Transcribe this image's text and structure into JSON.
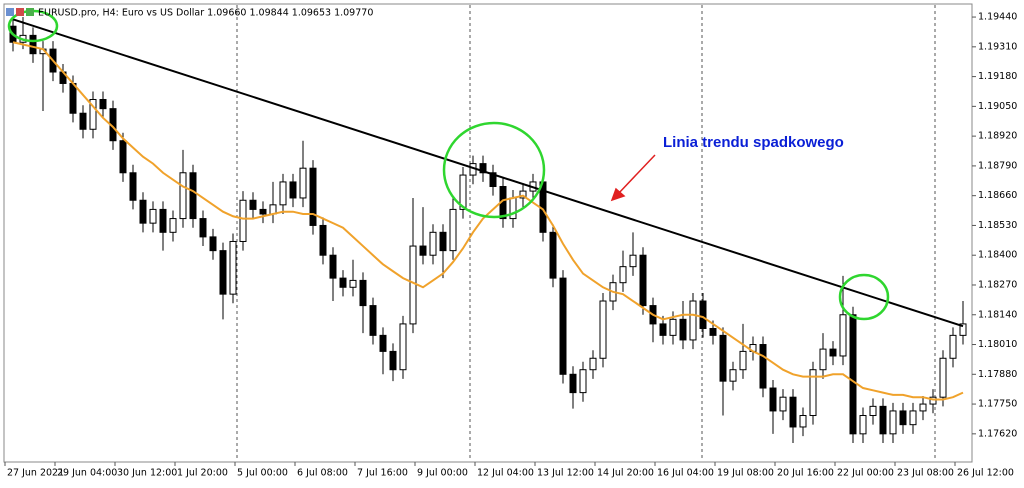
{
  "chart_data": {
    "type": "candlestick",
    "title": "EURUSD.pro, H4:  Euro vs US Dollar  1.09660 1.09844 1.09653 1.09770",
    "annotation": "Linia trendu spadkowego",
    "categories": [
      "27 Jun 2021",
      null,
      null,
      null,
      null,
      "29 Jun 04:00",
      null,
      null,
      null,
      null,
      null,
      "30 Jun 12:00",
      null,
      null,
      null,
      null,
      null,
      "1 Jul 20:00",
      null,
      null,
      null,
      null,
      null,
      "5 Jul 00:00",
      null,
      null,
      null,
      null,
      null,
      "6 Jul 08:00",
      null,
      null,
      null,
      null,
      null,
      "7 Jul 16:00",
      null,
      null,
      null,
      null,
      null,
      "9 Jul 00:00",
      null,
      null,
      null,
      null,
      null,
      "12 Jul 04:00",
      null,
      null,
      null,
      null,
      null,
      "13 Jul 12:00",
      null,
      null,
      null,
      null,
      null,
      "14 Jul 20:00",
      null,
      null,
      null,
      null,
      null,
      "16 Jul 04:00",
      null,
      null,
      null,
      null,
      null,
      "19 Jul 08:00",
      null,
      null,
      null,
      null,
      null,
      "20 Jul 16:00",
      null,
      null,
      null,
      null,
      null,
      "22 Jul 00:00",
      null,
      null,
      null,
      null,
      null,
      "23 Jul 08:00",
      null,
      null,
      null,
      null,
      null,
      "26 Jul 12:00"
    ],
    "open": [
      1.194,
      1.1933,
      1.1936,
      1.1928,
      1.193,
      1.192,
      1.1915,
      1.1902,
      1.1895,
      1.1908,
      1.1904,
      1.189,
      1.1876,
      1.1864,
      1.1854,
      1.186,
      1.185,
      1.1856,
      1.1876,
      1.1856,
      1.1848,
      1.1842,
      1.1823,
      1.1846,
      1.1864,
      1.186,
      1.1858,
      1.1862,
      1.1872,
      1.1865,
      1.1878,
      1.1853,
      1.184,
      1.183,
      1.1826,
      1.1829,
      1.1818,
      1.1805,
      1.1798,
      1.179,
      1.181,
      1.1844,
      1.184,
      1.185,
      1.1842,
      1.186,
      1.1875,
      1.188,
      1.1876,
      1.187,
      1.1856,
      1.1865,
      1.1868,
      1.1872,
      1.185,
      1.183,
      1.1788,
      1.178,
      1.179,
      1.1795,
      1.182,
      1.1828,
      1.1835,
      1.184,
      1.1818,
      1.181,
      1.1805,
      1.1812,
      1.1803,
      1.182,
      1.1808,
      1.1805,
      1.1785,
      1.179,
      1.1798,
      1.1801,
      1.1782,
      1.1772,
      1.1778,
      1.1765,
      1.177,
      1.179,
      1.1799,
      1.1796,
      1.1814,
      1.1762,
      1.177,
      1.1774,
      1.1762,
      1.1772,
      1.1766,
      1.1772,
      1.1775,
      1.1778,
      1.1795,
      1.1805
    ],
    "high": [
      1.19435,
      1.1944,
      1.19395,
      1.19335,
      1.19335,
      1.19235,
      1.19185,
      1.19055,
      1.19115,
      1.19115,
      1.19075,
      1.18935,
      1.18795,
      1.18675,
      1.18635,
      1.18635,
      1.18595,
      1.1886,
      1.18795,
      1.18595,
      1.18515,
      1.18455,
      1.18495,
      1.1868,
      1.18675,
      1.18635,
      1.1872,
      1.18755,
      1.18755,
      1.189,
      1.18815,
      1.18565,
      1.18435,
      1.18335,
      1.1838,
      1.18325,
      1.18215,
      1.18085,
      1.18015,
      1.18135,
      1.1865,
      1.1861,
      1.18535,
      1.18535,
      1.1866,
      1.18785,
      1.18835,
      1.18835,
      1.18795,
      1.18735,
      1.18685,
      1.18715,
      1.18755,
      1.18755,
      1.18535,
      1.18335,
      1.17915,
      1.17935,
      1.17985,
      1.18235,
      1.18315,
      1.1842,
      1.185,
      1.18435,
      1.18215,
      1.18135,
      1.18155,
      1.182,
      1.18235,
      1.18235,
      1.18115,
      1.18085,
      1.17935,
      1.181,
      1.18045,
      1.18045,
      1.17855,
      1.17815,
      1.17815,
      1.17735,
      1.17935,
      1.1806,
      1.18025,
      1.1831,
      1.18175,
      1.17735,
      1.17775,
      1.17775,
      1.17755,
      1.17755,
      1.17755,
      1.17785,
      1.17815,
      1.17985,
      1.18085,
      1.182
    ],
    "low": [
      1.1929,
      1.193,
      1.1924,
      1.1903,
      1.1916,
      1.1911,
      1.1898,
      1.1891,
      1.1891,
      1.19,
      1.1886,
      1.1872,
      1.186,
      1.185,
      1.185,
      1.1842,
      1.1846,
      1.1852,
      1.1852,
      1.1844,
      1.1838,
      1.1812,
      1.1819,
      1.1842,
      1.1856,
      1.1854,
      1.1854,
      1.1858,
      1.1861,
      1.1861,
      1.1849,
      1.1836,
      1.182,
      1.1822,
      1.1822,
      1.1806,
      1.1801,
      1.1788,
      1.1785,
      1.1786,
      1.1806,
      1.1836,
      1.1836,
      1.183,
      1.1838,
      1.1856,
      1.1871,
      1.1872,
      1.1866,
      1.1852,
      1.1852,
      1.1861,
      1.1864,
      1.1846,
      1.1826,
      1.1784,
      1.1773,
      1.1776,
      1.1786,
      1.1791,
      1.1816,
      1.1824,
      1.1831,
      1.1814,
      1.1802,
      1.1801,
      1.1801,
      1.1799,
      1.1799,
      1.1804,
      1.1801,
      1.177,
      1.1781,
      1.1786,
      1.1794,
      1.1778,
      1.1762,
      1.1768,
      1.1758,
      1.1761,
      1.1766,
      1.1786,
      1.1792,
      1.1792,
      1.1758,
      1.1758,
      1.1766,
      1.1758,
      1.1758,
      1.1762,
      1.1762,
      1.1768,
      1.1771,
      1.1774,
      1.1791,
      1.1801
    ],
    "close": [
      1.1933,
      1.1936,
      1.1928,
      1.193,
      1.192,
      1.1915,
      1.1902,
      1.1895,
      1.1908,
      1.1904,
      1.189,
      1.1876,
      1.1864,
      1.1854,
      1.186,
      1.185,
      1.1856,
      1.1876,
      1.1856,
      1.1848,
      1.1842,
      1.1823,
      1.1846,
      1.1864,
      1.186,
      1.1858,
      1.1862,
      1.1872,
      1.1865,
      1.1878,
      1.1853,
      1.184,
      1.183,
      1.1826,
      1.1829,
      1.1818,
      1.1805,
      1.1798,
      1.179,
      1.181,
      1.1844,
      1.184,
      1.185,
      1.1842,
      1.186,
      1.1875,
      1.188,
      1.1876,
      1.187,
      1.1856,
      1.1865,
      1.1868,
      1.1872,
      1.185,
      1.183,
      1.1788,
      1.178,
      1.179,
      1.1795,
      1.182,
      1.1828,
      1.1835,
      1.184,
      1.1818,
      1.181,
      1.1805,
      1.1812,
      1.1803,
      1.182,
      1.1808,
      1.1805,
      1.1785,
      1.179,
      1.1798,
      1.1801,
      1.1782,
      1.1772,
      1.1778,
      1.1765,
      1.177,
      1.179,
      1.1799,
      1.1796,
      1.1814,
      1.1762,
      1.177,
      1.1774,
      1.1762,
      1.1772,
      1.1766,
      1.1772,
      1.1775,
      1.1778,
      1.1795,
      1.1805,
      1.181
    ],
    "moving_average": {
      "color": "#f0a22b",
      "values": [
        1.1933,
        1.1932,
        1.1931,
        1.193,
        1.1925,
        1.192,
        1.1915,
        1.191,
        1.1905,
        1.19,
        1.1896,
        1.1891,
        1.1887,
        1.1883,
        1.188,
        1.1876,
        1.1873,
        1.187,
        1.1868,
        1.1865,
        1.1862,
        1.1859,
        1.1857,
        1.1856,
        1.1856,
        1.1857,
        1.1858,
        1.1859,
        1.1859,
        1.1858,
        1.1858,
        1.1856,
        1.1854,
        1.1852,
        1.1848,
        1.1844,
        1.184,
        1.1836,
        1.1833,
        1.183,
        1.1828,
        1.1826,
        1.1829,
        1.1832,
        1.1837,
        1.1843,
        1.185,
        1.1856,
        1.186,
        1.1864,
        1.1865,
        1.1866,
        1.1863,
        1.186,
        1.1853,
        1.1845,
        1.1838,
        1.1832,
        1.1829,
        1.1826,
        1.1824,
        1.1823,
        1.182,
        1.1817,
        1.1814,
        1.1812,
        1.1813,
        1.1814,
        1.1814,
        1.1813,
        1.181,
        1.1807,
        1.1804,
        1.1801,
        1.1798,
        1.1796,
        1.1793,
        1.179,
        1.1788,
        1.1787,
        1.1787,
        1.1787,
        1.1788,
        1.1788,
        1.1785,
        1.1782,
        1.1781,
        1.178,
        1.1779,
        1.1779,
        1.1778,
        1.1778,
        1.1777,
        1.1777,
        1.1778,
        1.178
      ]
    },
    "trendline": {
      "color": "#000000",
      "values": [
        1.1943,
        1.1809
      ]
    },
    "ylim": [
      1.17497,
      1.19497
    ],
    "yticks": [
      {
        "value": 1.1944,
        "label": "1.19440"
      },
      {
        "value": 1.1931,
        "label": "1.19310"
      },
      {
        "value": 1.1918,
        "label": "1.19180"
      },
      {
        "value": 1.1905,
        "label": "1.19050"
      },
      {
        "value": 1.1892,
        "label": "1.18920"
      },
      {
        "value": 1.1879,
        "label": "1.18790"
      },
      {
        "value": 1.1866,
        "label": "1.18660"
      },
      {
        "value": 1.1853,
        "label": "1.18530"
      },
      {
        "value": 1.184,
        "label": "1.18400"
      },
      {
        "value": 1.1827,
        "label": "1.18270"
      },
      {
        "value": 1.1814,
        "label": "1.18140"
      },
      {
        "value": 1.1801,
        "label": "1.18010"
      },
      {
        "value": 1.1788,
        "label": "1.17880"
      },
      {
        "value": 1.1775,
        "label": "1.17750"
      },
      {
        "value": 1.1762,
        "label": "1.17620"
      }
    ]
  }
}
